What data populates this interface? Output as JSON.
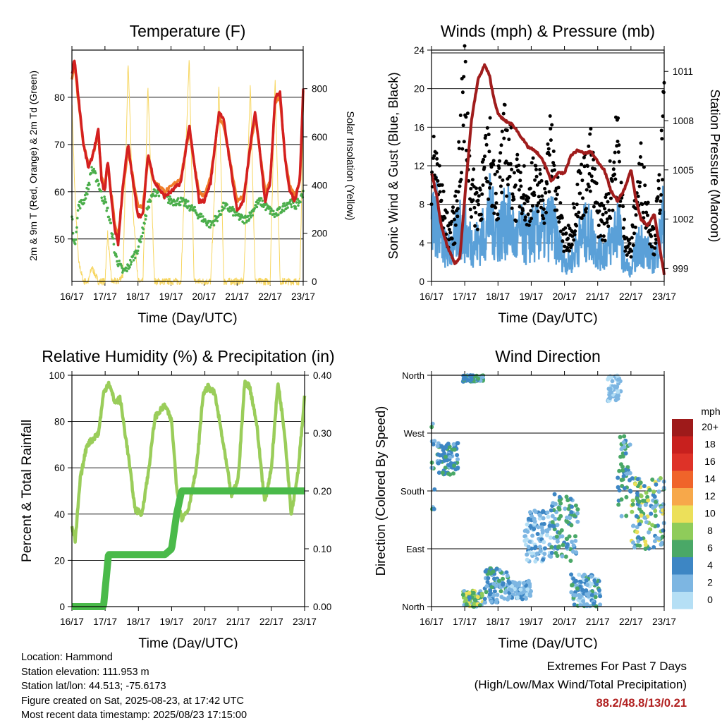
{
  "panels": {
    "temperature": {
      "title": "Temperature (F)",
      "ylabel_left": "2m & 9m T (Red, Orange) & 2m Td (Green)",
      "ylabel_right": "Solar Insolation (Yellow)",
      "xlabel": "Time (Day/UTC)"
    },
    "winds": {
      "title": "Winds (mph) & Pressure (mb)",
      "ylabel_left": "Sonic Wind & Gust (Blue, Black)",
      "ylabel_right": "Station Pressure (Maroon)",
      "xlabel": "Time (Day/UTC)"
    },
    "humidity": {
      "title": "Relative Humidity (%) & Precipitation (in)",
      "ylabel_left": "Percent & Total Rainfall",
      "xlabel": "Time (Day/UTC)"
    },
    "direction": {
      "title": "Wind Direction",
      "ylabel_left": "Direction (Colored By Speed)",
      "xlabel": "Time (Day/UTC)"
    }
  },
  "colorbar": {
    "title": "mph",
    "labels": [
      "20+",
      "18",
      "16",
      "14",
      "12",
      "10",
      "8",
      "6",
      "4",
      "2",
      "0"
    ],
    "colors": [
      "#9e1a1a",
      "#c8201e",
      "#de3228",
      "#f0642a",
      "#f7a84a",
      "#ece05a",
      "#8fcc5a",
      "#4aa867",
      "#3d86c4",
      "#7db6e2",
      "#b5dff5"
    ]
  },
  "footer": {
    "location": "Location: Hammond",
    "elevation": "Station elevation: 111.953 m",
    "latlon": "Station lat/lon: 44.513; -75.6173",
    "created": "Figure created on Sat, 2025-08-23, at 17:42 UTC",
    "latest": "Most recent data timestamp: 2025/08/23 17:15:00"
  },
  "extremes": {
    "title": "Extremes For Past 7 Days",
    "subtitle": "(High/Low/Max Wind/Total Precipitation)",
    "values": "88.2/48.8/13/0.21"
  },
  "colors": {
    "temp2m": "#d42020",
    "temp9m": "#f07d2b",
    "dewpoint": "#4bae4b",
    "solar": "#f7d660",
    "gust": "#000000",
    "wind": "#5aa0d8",
    "pressure": "#a01c1c",
    "rh": "#9acd5a",
    "precip": "#4aba4a"
  },
  "chart_data": [
    {
      "type": "line",
      "title": "Temperature (F)",
      "xlabel": "Time (Day/UTC)",
      "ylabel": "2m & 9m T (Red, Orange) & 2m Td (Green)",
      "ylabel_right": "Solar Insolation (Yellow)",
      "x_ticks": [
        "16/17",
        "17/17",
        "18/17",
        "19/17",
        "20/17",
        "21/17",
        "22/17",
        "23/17"
      ],
      "ylim": [
        41,
        90
      ],
      "y_ticks": [
        50,
        60,
        70,
        80
      ],
      "y2lim": [
        0,
        960
      ],
      "y2_ticks": [
        0,
        200,
        400,
        600,
        800
      ],
      "grid": true,
      "x": [
        0,
        0.08,
        0.2,
        0.35,
        0.5,
        0.6,
        0.8,
        0.9,
        1.0,
        1.08,
        1.2,
        1.3,
        1.4,
        1.55,
        1.7,
        1.85,
        2.0,
        2.15,
        2.3,
        2.5,
        2.7,
        2.8,
        3.0,
        3.3,
        3.55,
        3.7,
        3.85,
        4.0,
        4.2,
        4.45,
        4.6,
        4.85,
        5.0,
        5.2,
        5.4,
        5.55,
        5.7,
        5.85,
        6.0,
        6.15,
        6.3,
        6.45,
        6.6,
        6.75,
        6.9,
        7.0
      ],
      "series": [
        {
          "name": "2m T",
          "values": [
            85,
            88,
            80,
            70,
            65,
            67,
            73,
            62,
            60,
            67,
            58,
            52,
            49,
            62,
            70,
            62,
            55,
            55,
            68,
            62,
            60,
            59,
            60,
            62,
            74,
            66,
            58,
            58,
            62,
            77,
            75,
            63,
            56,
            58,
            70,
            77,
            68,
            58,
            62,
            80,
            81,
            67,
            60,
            58,
            63,
            82
          ]
        },
        {
          "name": "9m T",
          "values": [
            84,
            87,
            79,
            70,
            66,
            67,
            72,
            63,
            61,
            66,
            59,
            53,
            50,
            61,
            69,
            63,
            57,
            57,
            67,
            62,
            61,
            60,
            61,
            63,
            73,
            66,
            60,
            59,
            63,
            76,
            74,
            64,
            58,
            59,
            69,
            76,
            68,
            60,
            62,
            79,
            80,
            67,
            61,
            59,
            62,
            81
          ]
        },
        {
          "name": "2m Td",
          "values": [
            55,
            48,
            57,
            58,
            61,
            65,
            62,
            59,
            58,
            56,
            52,
            47,
            45,
            43,
            44,
            46,
            48,
            52,
            57,
            60,
            60,
            59,
            58,
            58,
            57,
            56,
            55,
            54,
            53,
            55,
            57,
            56,
            55,
            54,
            55,
            57,
            58,
            57,
            56,
            55,
            56,
            57,
            58,
            57,
            58,
            60
          ]
        },
        {
          "name": "Solar",
          "axis": "right",
          "values": [
            750,
            400,
            80,
            0,
            0,
            60,
            0,
            0,
            0,
            200,
            0,
            0,
            0,
            30,
            920,
            300,
            0,
            0,
            810,
            0,
            0,
            0,
            0,
            0,
            920,
            0,
            0,
            0,
            0,
            800,
            0,
            0,
            0,
            0,
            810,
            0,
            0,
            0,
            0,
            850,
            0,
            0,
            0,
            0,
            0,
            680
          ]
        }
      ]
    },
    {
      "type": "line",
      "title": "Winds (mph) & Pressure (mb)",
      "xlabel": "Time (Day/UTC)",
      "ylabel": "Sonic Wind & Gust (Blue, Black)",
      "ylabel_right": "Station Pressure (Maroon)",
      "x_ticks": [
        "16/17",
        "17/17",
        "18/17",
        "19/17",
        "20/17",
        "21/17",
        "22/17",
        "23/17"
      ],
      "ylim": [
        0,
        24
      ],
      "y_ticks": [
        0,
        4,
        8,
        12,
        16,
        20,
        24
      ],
      "y2lim": [
        998.2,
        1012.3
      ],
      "y2_ticks": [
        999,
        1002,
        1005,
        1008,
        1011
      ],
      "grid": true,
      "x": [
        0,
        0.15,
        0.3,
        0.5,
        0.7,
        0.85,
        1.0,
        1.2,
        1.4,
        1.6,
        1.75,
        1.85,
        2.0,
        2.2,
        2.4,
        2.5,
        2.7,
        2.9,
        3.0,
        3.2,
        3.4,
        3.6,
        3.8,
        4.0,
        4.2,
        4.4,
        4.6,
        4.8,
        5.0,
        5.2,
        5.4,
        5.6,
        5.8,
        6.0,
        6.15,
        6.3,
        6.5,
        6.7,
        6.85,
        7.0
      ],
      "series": [
        {
          "name": "Gust",
          "values": [
            11,
            12,
            8,
            5,
            6,
            13,
            19,
            9,
            8,
            11,
            13,
            11,
            9,
            14,
            12,
            9,
            11,
            7,
            10,
            9,
            9,
            14,
            8,
            4,
            5,
            9,
            10,
            12,
            7,
            6,
            10,
            14,
            5,
            3,
            8,
            11,
            7,
            4,
            9,
            16
          ]
        },
        {
          "name": "Wind",
          "values": [
            6,
            7,
            4,
            3,
            4,
            6,
            5,
            4,
            4,
            5,
            7,
            6,
            5,
            6,
            6,
            4,
            5,
            4,
            5,
            5,
            5,
            6,
            4,
            2,
            2,
            4,
            5,
            5,
            3,
            3,
            4,
            6,
            2,
            1,
            3,
            4,
            3,
            2,
            4,
            7
          ]
        },
        {
          "name": "Pressure",
          "axis": "right",
          "values": [
            1004.8,
            1003.5,
            1001.5,
            1000.2,
            999.3,
            999.6,
            1003.3,
            1008.0,
            1010.5,
            1011.4,
            1010.7,
            1009.6,
            1008.4,
            1008.0,
            1007.8,
            1007.6,
            1007.0,
            1006.4,
            1006.3,
            1006.0,
            1005.4,
            1004.3,
            1004.8,
            1004.8,
            1005.9,
            1006.2,
            1006.0,
            1006.1,
            1005.5,
            1005.0,
            1003.7,
            1003.1,
            1003.8,
            1005.0,
            1003.2,
            1002.0,
            1001.6,
            1002.3,
            1000.5,
            998.6
          ]
        }
      ]
    },
    {
      "type": "line",
      "title": "Relative Humidity (%) & Precipitation (in)",
      "xlabel": "Time (Day/UTC)",
      "ylabel": "Percent & Total Rainfall",
      "x_ticks": [
        "16/17",
        "17/17",
        "18/17",
        "19/17",
        "20/17",
        "21/17",
        "22/17",
        "23/17"
      ],
      "ylim": [
        0,
        100
      ],
      "y_ticks": [
        0,
        20,
        40,
        60,
        80,
        100
      ],
      "y2lim": [
        0,
        0.4
      ],
      "y2_ticks": [
        "0.00",
        "0.10",
        "0.20",
        "0.30",
        "0.40"
      ],
      "grid": true,
      "x": [
        0,
        0.1,
        0.25,
        0.45,
        0.6,
        0.8,
        0.95,
        1.1,
        1.3,
        1.45,
        1.7,
        1.9,
        2.1,
        2.3,
        2.5,
        2.8,
        3.0,
        3.15,
        3.3,
        3.5,
        3.75,
        3.95,
        4.1,
        4.3,
        4.5,
        4.8,
        5.0,
        5.2,
        5.35,
        5.55,
        5.8,
        6.0,
        6.2,
        6.4,
        6.6,
        6.8,
        7.0
      ],
      "series": [
        {
          "name": "RH",
          "values": [
            35,
            28,
            55,
            70,
            72,
            75,
            92,
            97,
            88,
            90,
            65,
            42,
            40,
            58,
            82,
            87,
            80,
            52,
            38,
            42,
            60,
            92,
            95,
            92,
            75,
            48,
            55,
            97,
            95,
            80,
            45,
            60,
            97,
            75,
            40,
            58,
            90
          ]
        },
        {
          "name": "Precip",
          "axis": "right",
          "values": [
            0,
            0,
            0,
            0,
            0,
            0,
            0,
            0.09,
            0.09,
            0.09,
            0.09,
            0.09,
            0.09,
            0.09,
            0.09,
            0.09,
            0.1,
            0.16,
            0.2,
            0.2,
            0.2,
            0.2,
            0.2,
            0.2,
            0.2,
            0.2,
            0.2,
            0.2,
            0.2,
            0.2,
            0.2,
            0.2,
            0.2,
            0.2,
            0.2,
            0.2,
            0.2
          ]
        }
      ]
    },
    {
      "type": "scatter",
      "title": "Wind Direction",
      "xlabel": "Time (Day/UTC)",
      "ylabel": "Direction (Colored By Speed)",
      "x_ticks": [
        "16/17",
        "17/17",
        "18/17",
        "19/17",
        "20/17",
        "21/17",
        "22/17",
        "23/17"
      ],
      "y_ticks": [
        "North",
        "East",
        "South",
        "West",
        "North"
      ],
      "ylim": [
        0,
        360
      ],
      "colorbar": "mph",
      "grid": true,
      "clusters": [
        {
          "x": [
            0,
            0.1
          ],
          "dir": [
            150,
            290
          ],
          "speed": [
            3,
            7
          ]
        },
        {
          "x": [
            0.15,
            0.8
          ],
          "dir": [
            205,
            255
          ],
          "speed": [
            3,
            7
          ]
        },
        {
          "x": [
            0.95,
            1.55
          ],
          "dir": [
            350,
            360
          ],
          "speed": [
            3,
            7
          ]
        },
        {
          "x": [
            0.95,
            1.55
          ],
          "dir": [
            0,
            25
          ],
          "speed": [
            3,
            12
          ]
        },
        {
          "x": [
            1.6,
            2.3
          ],
          "dir": [
            5,
            60
          ],
          "speed": [
            2,
            7
          ]
        },
        {
          "x": [
            2.3,
            3.0
          ],
          "dir": [
            10,
            40
          ],
          "speed": [
            1,
            5
          ]
        },
        {
          "x": [
            2.8,
            3.6
          ],
          "dir": [
            70,
            150
          ],
          "speed": [
            1,
            5
          ]
        },
        {
          "x": [
            3.6,
            4.4
          ],
          "dir": [
            70,
            175
          ],
          "speed": [
            2,
            8
          ]
        },
        {
          "x": [
            4.2,
            5.1
          ],
          "dir": [
            0,
            50
          ],
          "speed": [
            1,
            7
          ]
        },
        {
          "x": [
            5.3,
            5.7
          ],
          "dir": [
            320,
            360
          ],
          "speed": [
            1,
            4
          ]
        },
        {
          "x": [
            5.6,
            6.0
          ],
          "dir": [
            140,
            270
          ],
          "speed": [
            3,
            8
          ]
        },
        {
          "x": [
            6.0,
            7.0
          ],
          "dir": [
            90,
            200
          ],
          "speed": [
            2,
            12
          ]
        }
      ]
    }
  ]
}
